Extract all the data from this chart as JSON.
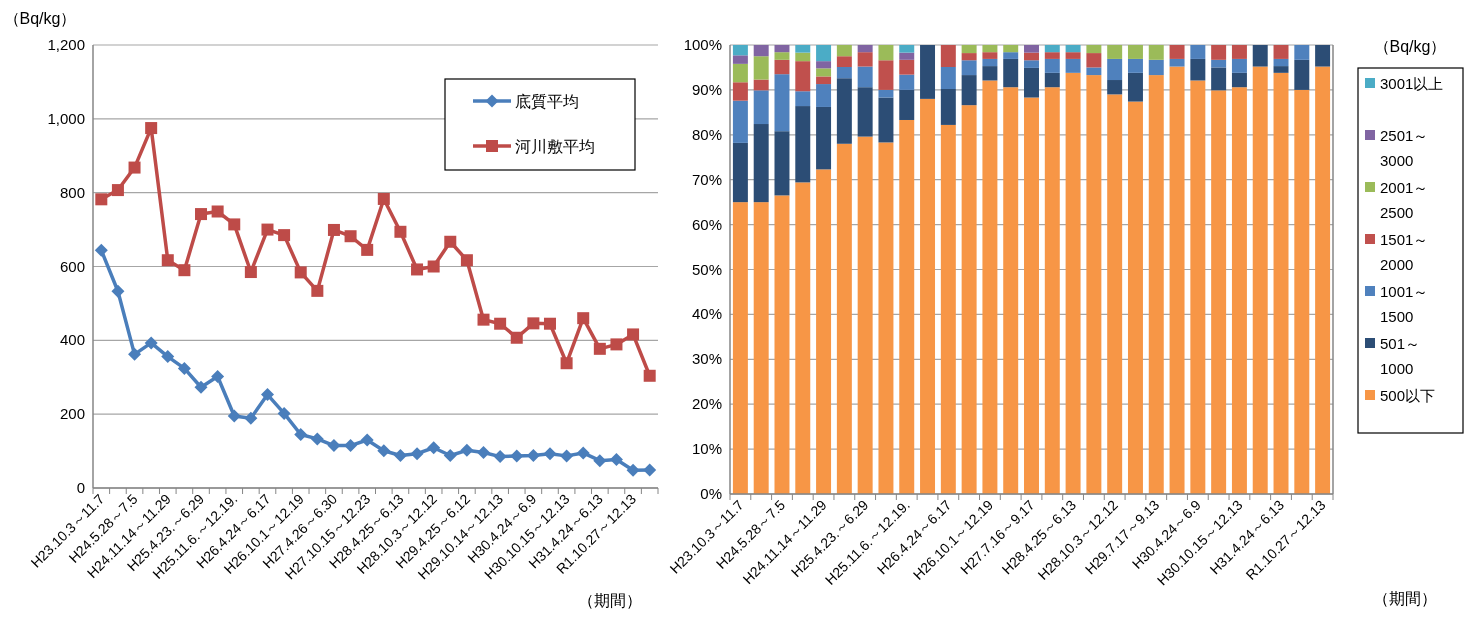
{
  "chart_data": [
    {
      "type": "line",
      "ylabel": "（Bq/kg）",
      "xlabel": "（期間）",
      "categories": [
        "H23.10.3～11.7",
        null,
        "H24.5.28～7.5",
        null,
        "H24.11.14～11.29",
        null,
        "H25.4.23.～6.29",
        null,
        "H25.11.6.～12.19.",
        null,
        "H26.4.24～6.17",
        null,
        "H26.10.1～12.19",
        null,
        "H27.4.26～6.30",
        null,
        "H27.10.15～12.23",
        null,
        "H28.4.25～6.13",
        null,
        "H28.10.3～12.12",
        null,
        "H29.4.25～6.12",
        null,
        "H29.10.14～12.13",
        null,
        "H30.4.24～6.9",
        null,
        "H30.10.15～12.13",
        null,
        "H31.4.24～6.13",
        null,
        "R1.10.27～12.13",
        null
      ],
      "series": [
        {
          "name": "底質平均",
          "color": "#4a7ebb",
          "marker": "diamond",
          "values": [
            644,
            533,
            362,
            393,
            356,
            324,
            273,
            302,
            195,
            189,
            253,
            202,
            145,
            133,
            115,
            115,
            130,
            101,
            88,
            93,
            109,
            88,
            102,
            96,
            85,
            87,
            88,
            93,
            87,
            95,
            74,
            77,
            48,
            49
          ]
        },
        {
          "name": "河川敷平均",
          "color": "#be4b48",
          "marker": "square",
          "values": [
            782,
            807,
            868,
            975,
            617,
            590,
            742,
            749,
            714,
            585,
            700,
            685,
            584,
            534,
            699,
            682,
            645,
            783,
            694,
            592,
            600,
            667,
            617,
            456,
            445,
            407,
            446,
            445,
            338,
            460,
            377,
            389,
            416,
            304
          ]
        }
      ],
      "ylim": [
        0,
        1200
      ],
      "yticks": [
        0,
        200,
        400,
        600,
        800,
        {
          "value": 1000,
          "label": "1,000"
        },
        {
          "value": 1200,
          "label": "1,200"
        }
      ],
      "grid": "y",
      "legend": "top right"
    },
    {
      "type": "bar",
      "stacked": true,
      "xlabel": "（期間）",
      "legend_title": "（Bq/kg）",
      "categories": [
        "H23.10.3～11.7",
        null,
        "H24.5.28～7.5",
        null,
        "H24.11.14～11.29",
        null,
        "H25.4.23.～6.29",
        null,
        "H25.11.6.～12.19.",
        null,
        "H26.4.24～6.17",
        null,
        "H26.10.1～12.19",
        null,
        "H27.7.16～9.17",
        null,
        "H28.4.25～6.13",
        null,
        "H28.10.3～12.12",
        null,
        "H29.7.17～9.13",
        null,
        "H30.4.24～6.9",
        null,
        "H30.10.15～12.13",
        null,
        "H31.4.24～6.13",
        null,
        "R1.10.27～12.13"
      ],
      "series": [
        {
          "name": "500以下",
          "color": "#f79646",
          "values": [
            65,
            65,
            66.5,
            69.4,
            72.3,
            78,
            79.6,
            78.3,
            83.3,
            88,
            82.2,
            86.6,
            92.1,
            90.6,
            88.3,
            90.6,
            93.8,
            93.3,
            89,
            87.4,
            93.3,
            95.2,
            92.1,
            89.9,
            90.6,
            95.2,
            93.8,
            90,
            95.2
          ]
        },
        {
          "name": "501～1000",
          "color": "#2c4d75",
          "values": [
            13.2,
            17.4,
            14.3,
            17,
            13.9,
            14.6,
            11,
            10,
            6.7,
            12,
            8,
            6.7,
            3.2,
            6.3,
            6.6,
            3.2,
            0,
            0,
            3.2,
            6.4,
            0,
            0,
            4.8,
            5.1,
            3.2,
            4.8,
            1.5,
            6.7,
            4.8
          ]
        },
        {
          "name": "1001～1500",
          "color": "#4f81bd",
          "values": [
            9.4,
            7.5,
            12.7,
            3.3,
            5.1,
            2.5,
            4.6,
            1.7,
            3.4,
            0,
            4.9,
            3.3,
            1.6,
            1.5,
            1.7,
            3.1,
            3.1,
            1.7,
            4.7,
            3.1,
            3.4,
            1.7,
            3.1,
            1.7,
            3.1,
            0,
            1.6,
            3.3,
            0
          ]
        },
        {
          "name": "1501～2000",
          "color": "#c0504d",
          "values": [
            4.1,
            2.4,
            3.2,
            6.7,
            1.7,
            2.4,
            3.2,
            6.6,
            3.3,
            0,
            4.9,
            1.6,
            1.5,
            0,
            1.7,
            1.5,
            1.5,
            3.2,
            0,
            0,
            0,
            3.1,
            0,
            3.3,
            3.1,
            0,
            3.1,
            0,
            0
          ]
        },
        {
          "name": "2001～2500",
          "color": "#9bbb59",
          "values": [
            4.1,
            5.2,
            1.7,
            1.9,
            1.8,
            2.5,
            0,
            3.4,
            0,
            0,
            0,
            1.8,
            1.6,
            1.6,
            0,
            0,
            0,
            1.8,
            3.1,
            3.1,
            3.3,
            0,
            0,
            0,
            0,
            0,
            0,
            0,
            0
          ]
        },
        {
          "name": "2501～3000",
          "color": "#8064a2",
          "values": [
            1.9,
            2.5,
            1.6,
            0,
            1.6,
            0,
            1.6,
            0,
            1.6,
            0,
            0,
            0,
            0,
            0,
            1.7,
            0,
            0,
            0,
            0,
            0,
            0,
            0,
            0,
            0,
            0,
            0,
            0,
            0,
            0
          ]
        },
        {
          "name": "3001以上",
          "color": "#4bacc6",
          "values": [
            2.3,
            0,
            0,
            1.7,
            3.6,
            0,
            0,
            0,
            1.7,
            0,
            0,
            0,
            0,
            0,
            0,
            1.6,
            1.6,
            0,
            0,
            0,
            0,
            0,
            0,
            0,
            0,
            0,
            0,
            0,
            0
          ]
        }
      ],
      "ylim": [
        0,
        100
      ],
      "yticks": [
        {
          "value": 0,
          "label": "0%"
        },
        {
          "value": 10,
          "label": "10%"
        },
        {
          "value": 20,
          "label": "20%"
        },
        {
          "value": 30,
          "label": "30%"
        },
        {
          "value": 40,
          "label": "40%"
        },
        {
          "value": 50,
          "label": "50%"
        },
        {
          "value": 60,
          "label": "60%"
        },
        {
          "value": 70,
          "label": "70%"
        },
        {
          "value": 80,
          "label": "80%"
        },
        {
          "value": 90,
          "label": "90%"
        },
        {
          "value": 100,
          "label": "100%"
        }
      ],
      "grid": "y",
      "legend": "right"
    }
  ]
}
